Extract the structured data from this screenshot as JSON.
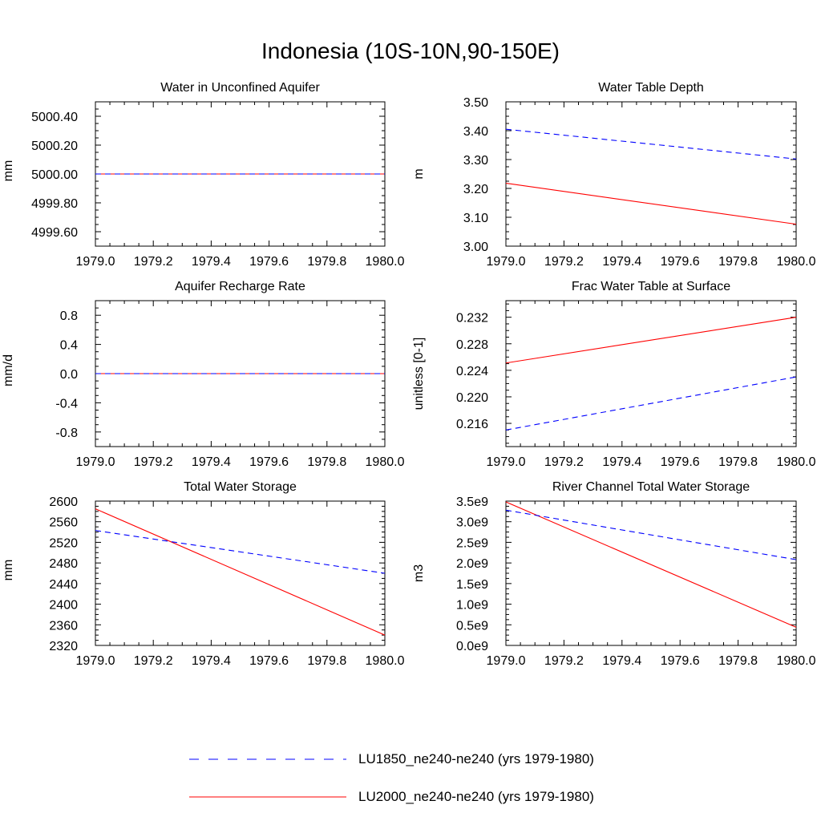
{
  "page_title": "Indonesia (10S-10N,90-150E)",
  "legend": {
    "items": [
      {
        "label": "LU1850_ne240-ne240 (yrs 1979-1980)",
        "color": "#0000ff",
        "style": "dashed"
      },
      {
        "label": "LU2000_ne240-ne240 (yrs 1979-1980)",
        "color": "#ff0000",
        "style": "solid"
      }
    ]
  },
  "chart_data": [
    {
      "type": "line",
      "title": "Water in Unconfined Aquifer",
      "ylabel": "mm",
      "xlim": [
        1979.0,
        1980.0
      ],
      "ylim": [
        4999.5,
        5000.5
      ],
      "xticks": [
        "1979.0",
        "1979.2",
        "1979.4",
        "1979.6",
        "1979.8",
        "1980.0"
      ],
      "yticks": [
        "4999.60",
        "4999.80",
        "5000.00",
        "5000.20",
        "5000.40"
      ],
      "series": [
        {
          "name": "LU1850_ne240-ne240 (yrs 1979-1980)",
          "x": [
            1979.0,
            1980.0
          ],
          "y": [
            5000.0,
            5000.0
          ]
        },
        {
          "name": "LU2000_ne240-ne240 (yrs 1979-1980)",
          "x": [
            1979.0,
            1980.0
          ],
          "y": [
            5000.0,
            5000.0
          ]
        }
      ]
    },
    {
      "type": "line",
      "title": "Water Table Depth",
      "ylabel": "m",
      "xlim": [
        1979.0,
        1980.0
      ],
      "ylim": [
        3.0,
        3.5
      ],
      "xticks": [
        "1979.0",
        "1979.2",
        "1979.4",
        "1979.6",
        "1979.8",
        "1980.0"
      ],
      "yticks": [
        "3.00",
        "3.10",
        "3.20",
        "3.30",
        "3.40",
        "3.50"
      ],
      "series": [
        {
          "name": "LU1850_ne240-ne240 (yrs 1979-1980)",
          "x": [
            1979.0,
            1980.0
          ],
          "y": [
            3.405,
            3.302
          ]
        },
        {
          "name": "LU2000_ne240-ne240 (yrs 1979-1980)",
          "x": [
            1979.0,
            1980.0
          ],
          "y": [
            3.218,
            3.076
          ]
        }
      ]
    },
    {
      "type": "line",
      "title": "Aquifer Recharge Rate",
      "ylabel": "mm/d",
      "xlim": [
        1979.0,
        1980.0
      ],
      "ylim": [
        -1.0,
        1.0
      ],
      "xticks": [
        "1979.0",
        "1979.2",
        "1979.4",
        "1979.6",
        "1979.8",
        "1980.0"
      ],
      "yticks": [
        "-0.8",
        "-0.4",
        "0.0",
        "0.4",
        "0.8"
      ],
      "series": [
        {
          "name": "LU1850_ne240-ne240 (yrs 1979-1980)",
          "x": [
            1979.0,
            1980.0
          ],
          "y": [
            0.0,
            0.0
          ]
        },
        {
          "name": "LU2000_ne240-ne240 (yrs 1979-1980)",
          "x": [
            1979.0,
            1980.0
          ],
          "y": [
            0.0,
            0.0
          ]
        }
      ]
    },
    {
      "type": "line",
      "title": "Frac Water Table at Surface",
      "ylabel": "unitless [0-1]",
      "xlim": [
        1979.0,
        1980.0
      ],
      "ylim": [
        0.2125,
        0.2345
      ],
      "xticks": [
        "1979.0",
        "1979.2",
        "1979.4",
        "1979.6",
        "1979.8",
        "1980.0"
      ],
      "yticks": [
        "0.216",
        "0.220",
        "0.224",
        "0.228",
        "0.232"
      ],
      "series": [
        {
          "name": "LU1850_ne240-ne240 (yrs 1979-1980)",
          "x": [
            1979.0,
            1980.0
          ],
          "y": [
            0.215,
            0.223
          ]
        },
        {
          "name": "LU2000_ne240-ne240 (yrs 1979-1980)",
          "x": [
            1979.0,
            1980.0
          ],
          "y": [
            0.2251,
            0.232
          ]
        }
      ]
    },
    {
      "type": "line",
      "title": "Total Water Storage",
      "ylabel": "mm",
      "xlim": [
        1979.0,
        1980.0
      ],
      "ylim": [
        2320,
        2600
      ],
      "xticks": [
        "1979.0",
        "1979.2",
        "1979.4",
        "1979.6",
        "1979.8",
        "1980.0"
      ],
      "yticks": [
        "2320",
        "2360",
        "2400",
        "2440",
        "2480",
        "2520",
        "2560",
        "2600"
      ],
      "series": [
        {
          "name": "LU1850_ne240-ne240 (yrs 1979-1980)",
          "x": [
            1979.0,
            1980.0
          ],
          "y": [
            2543,
            2460
          ]
        },
        {
          "name": "LU2000_ne240-ne240 (yrs 1979-1980)",
          "x": [
            1979.0,
            1980.0
          ],
          "y": [
            2585,
            2340
          ]
        }
      ]
    },
    {
      "type": "line",
      "title": "River Channel Total Water Storage",
      "ylabel": "m3",
      "xlim": [
        1979.0,
        1980.0
      ],
      "ylim": [
        0.0,
        3500000000.0
      ],
      "xticks": [
        "1979.0",
        "1979.2",
        "1979.4",
        "1979.6",
        "1979.8",
        "1980.0"
      ],
      "yticks": [
        "0.0e9",
        "0.5e9",
        "1.0e9",
        "1.5e9",
        "2.0e9",
        "2.5e9",
        "3.0e9",
        "3.5e9"
      ],
      "series": [
        {
          "name": "LU1850_ne240-ne240 (yrs 1979-1980)",
          "x": [
            1979.0,
            1980.0
          ],
          "y": [
            3280000000.0,
            2080000000.0
          ]
        },
        {
          "name": "LU2000_ne240-ne240 (yrs 1979-1980)",
          "x": [
            1979.0,
            1980.0
          ],
          "y": [
            3480000000.0,
            440000000.0
          ]
        }
      ]
    }
  ]
}
